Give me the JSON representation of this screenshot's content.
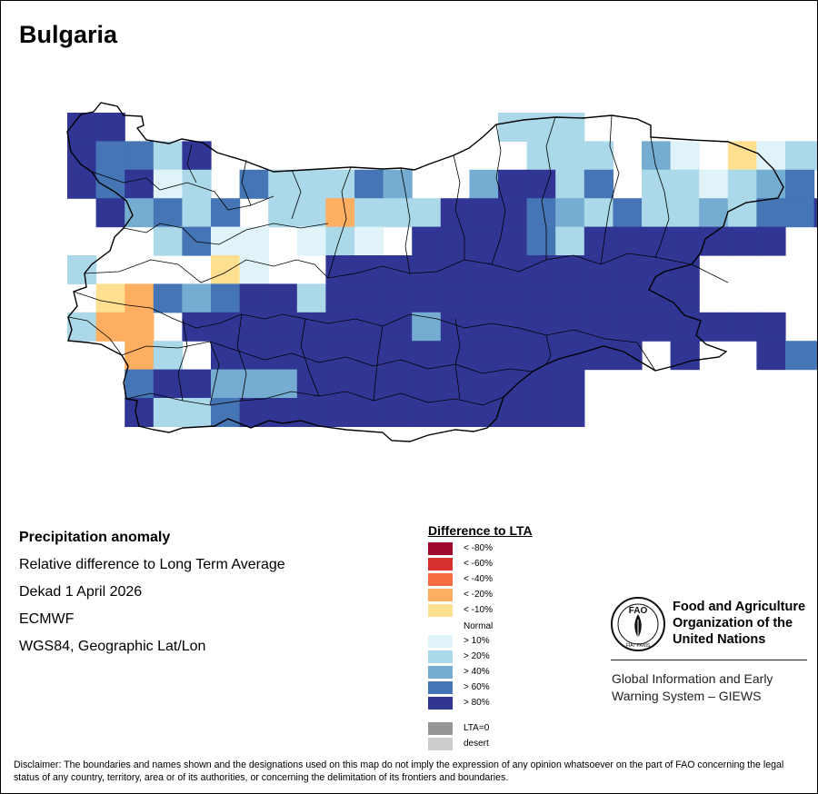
{
  "title": "Bulgaria",
  "info": {
    "heading": "Precipitation anomaly",
    "lines": [
      "Relative difference to Long Term Average",
      "Dekad 1 April 2026",
      "ECMWF",
      "WGS84, Geographic Lat/Lon"
    ]
  },
  "legend": {
    "title": "Difference to LTA",
    "items": [
      {
        "label": "< -80%",
        "color": "#9e0a2e"
      },
      {
        "label": "< -60%",
        "color": "#d7302f"
      },
      {
        "label": "< -40%",
        "color": "#f46d43"
      },
      {
        "label": "< -20%",
        "color": "#fdae61"
      },
      {
        "label": "< -10%",
        "color": "#fee090"
      },
      {
        "label": "> 10%",
        "color": "#e0f3f8"
      },
      {
        "label": "> 20%",
        "color": "#abd9e9"
      },
      {
        "label": "> 40%",
        "color": "#74add1"
      },
      {
        "label": "> 60%",
        "color": "#4575b4"
      },
      {
        "label": "> 80%",
        "color": "#313695"
      },
      {
        "label": "LTA=0",
        "color": "#969696"
      },
      {
        "label": "desert",
        "color": "#cccccc"
      }
    ],
    "normal_label": "Normal"
  },
  "fao": {
    "name_lines": [
      "Food and Agriculture",
      "Organization of the",
      "United Nations"
    ],
    "logo_text": "FAO",
    "motto": "FIAT PANIS",
    "system_lines": [
      "Global Information and Early",
      "Warning System – GIEWS"
    ]
  },
  "disclaimer": "Disclaimer: The boundaries and names shown and the designations used on this map do not imply the expression of any opinion whatsoever on the part of FAO concerning the legal status of any country, territory, area or of its authorities, or concerning the delimitation of its frontiers and boundaries."
}
